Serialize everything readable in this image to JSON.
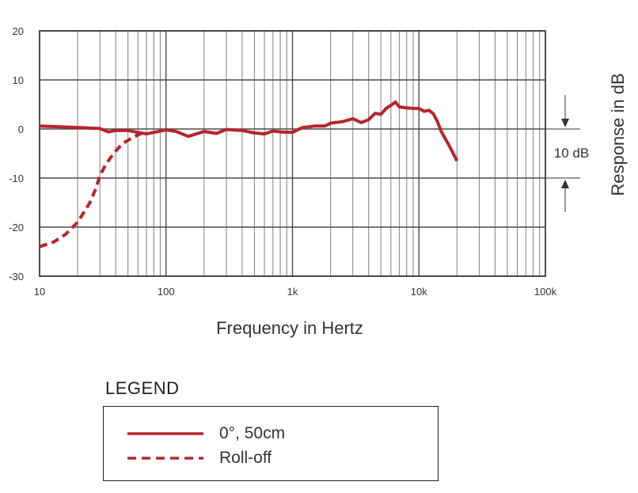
{
  "chart_data": {
    "type": "line",
    "xlabel": "Frequency in Hertz",
    "ylabel": "Response in dB",
    "x_scale": "log",
    "xlim": [
      10,
      100000
    ],
    "ylim": [
      -30,
      20
    ],
    "x_ticks": [
      10,
      100,
      1000,
      10000,
      100000
    ],
    "x_tick_labels": [
      "10",
      "100",
      "1k",
      "10k",
      "100k"
    ],
    "y_ticks": [
      20,
      10,
      0,
      -10,
      -20,
      -30
    ],
    "y_tick_labels": [
      "20",
      "10",
      "0",
      "-10",
      "-20",
      "-30"
    ],
    "grid": true,
    "annotation": "10 dB",
    "series": [
      {
        "name": "0°, 50cm",
        "style": "solid",
        "color": "#b5262b",
        "x": [
          10,
          20,
          30,
          35,
          40,
          50,
          60,
          70,
          80,
          100,
          120,
          150,
          200,
          250,
          300,
          400,
          500,
          600,
          700,
          800,
          1000,
          1200,
          1500,
          1800,
          2000,
          2500,
          3000,
          3500,
          4000,
          4500,
          5000,
          5500,
          6000,
          6500,
          7000,
          8000,
          9000,
          10000,
          11000,
          12000,
          13000,
          14000,
          15000,
          16000,
          17000,
          18000,
          20000
        ],
        "y": [
          0.6,
          0.3,
          0.1,
          -0.6,
          -0.3,
          -0.3,
          -0.7,
          -1.0,
          -0.7,
          -0.2,
          -0.5,
          -1.5,
          -0.5,
          -0.9,
          -0.1,
          -0.3,
          -0.8,
          -1.0,
          -0.4,
          -0.6,
          -0.7,
          0.3,
          0.6,
          0.6,
          1.2,
          1.5,
          2.1,
          1.3,
          1.9,
          3.2,
          3.0,
          4.2,
          4.8,
          5.5,
          4.5,
          4.3,
          4.2,
          4.2,
          3.6,
          3.8,
          3.1,
          1.5,
          -0.5,
          -1.8,
          -3.0,
          -4.2,
          -6.5
        ]
      },
      {
        "name": "Roll-off",
        "style": "dashed",
        "color": "#b5262b",
        "x": [
          10,
          13,
          16,
          20,
          25,
          28,
          30,
          33,
          36,
          40,
          45,
          50,
          55,
          60,
          65
        ],
        "y": [
          -24,
          -23,
          -21.5,
          -19,
          -15,
          -12,
          -9.5,
          -7.5,
          -6,
          -4.5,
          -3,
          -2.3,
          -1.7,
          -1.2,
          -0.8
        ]
      }
    ]
  },
  "legend": {
    "title": "LEGEND",
    "items": [
      "0°, 50cm",
      "Roll-off"
    ]
  }
}
